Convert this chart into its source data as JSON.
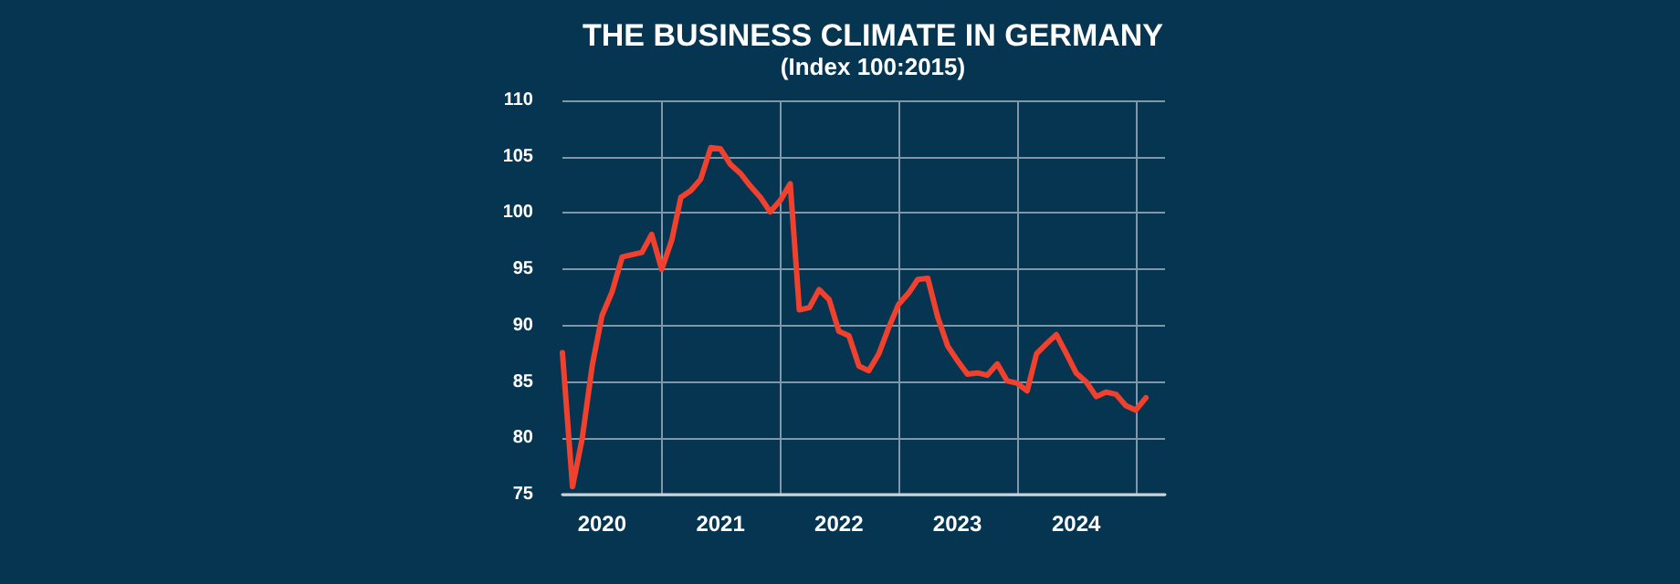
{
  "chart_data": {
    "type": "line",
    "title": "THE BUSINESS CLIMATE IN GERMANY",
    "subtitle": "(Index 100:2015)",
    "x": [
      "2020-03",
      "2020-04",
      "2020-05",
      "2020-06",
      "2020-07",
      "2020-08",
      "2020-09",
      "2020-10",
      "2020-11",
      "2020-12",
      "2021-01",
      "2021-02",
      "2021-03",
      "2021-04",
      "2021-05",
      "2021-06",
      "2021-07",
      "2021-08",
      "2021-09",
      "2021-10",
      "2021-11",
      "2021-12",
      "2022-01",
      "2022-02",
      "2022-03",
      "2022-04",
      "2022-05",
      "2022-06",
      "2022-07",
      "2022-08",
      "2022-09",
      "2022-10",
      "2022-11",
      "2022-12",
      "2023-01",
      "2023-02",
      "2023-03",
      "2023-04",
      "2023-05",
      "2023-06",
      "2023-07",
      "2023-08",
      "2023-09",
      "2023-10",
      "2023-11",
      "2023-12",
      "2024-01",
      "2024-02",
      "2024-03",
      "2024-04",
      "2024-05",
      "2024-06",
      "2024-07",
      "2024-08",
      "2024-09",
      "2024-10",
      "2024-11",
      "2024-12",
      "2025-01",
      "2025-02"
    ],
    "series": [
      {
        "color": "#f0412f",
        "values": [
          87.6,
          75.7,
          80.0,
          86.5,
          90.9,
          93.0,
          96.1,
          96.3,
          96.5,
          98.1,
          95.0,
          97.6,
          101.4,
          102.0,
          103.0,
          105.8,
          105.7,
          104.3,
          103.5,
          102.4,
          101.4,
          100.1,
          101.1,
          102.6,
          91.4,
          91.6,
          93.2,
          92.3,
          89.5,
          89.1,
          86.4,
          86.0,
          87.5,
          89.8,
          91.9,
          92.9,
          94.1,
          94.2,
          90.8,
          88.2,
          86.9,
          85.7,
          85.8,
          85.6,
          86.6,
          85.1,
          84.9,
          84.2,
          87.5,
          88.4,
          89.2,
          87.5,
          85.8,
          85.0,
          83.7,
          84.1,
          83.9,
          82.9,
          82.5,
          83.6
        ]
      }
    ],
    "xlim": [
      "2020-03",
      "2025-04"
    ],
    "xticks": [
      {
        "value": "2020-07",
        "label": "2020"
      },
      {
        "value": "2021-01",
        "label": null
      },
      {
        "value": "2021-07",
        "label": "2021"
      },
      {
        "value": "2022-01",
        "label": null
      },
      {
        "value": "2022-07",
        "label": "2022"
      },
      {
        "value": "2023-01",
        "label": null
      },
      {
        "value": "2023-07",
        "label": "2023"
      },
      {
        "value": "2024-01",
        "label": null
      },
      {
        "value": "2024-07",
        "label": "2024"
      },
      {
        "value": "2025-01",
        "label": null
      }
    ],
    "ylim": [
      75,
      110
    ],
    "yticks": [
      75,
      80,
      85,
      90,
      95,
      100,
      105,
      110
    ],
    "grid": true,
    "marker": "none",
    "line_style": "solid"
  }
}
